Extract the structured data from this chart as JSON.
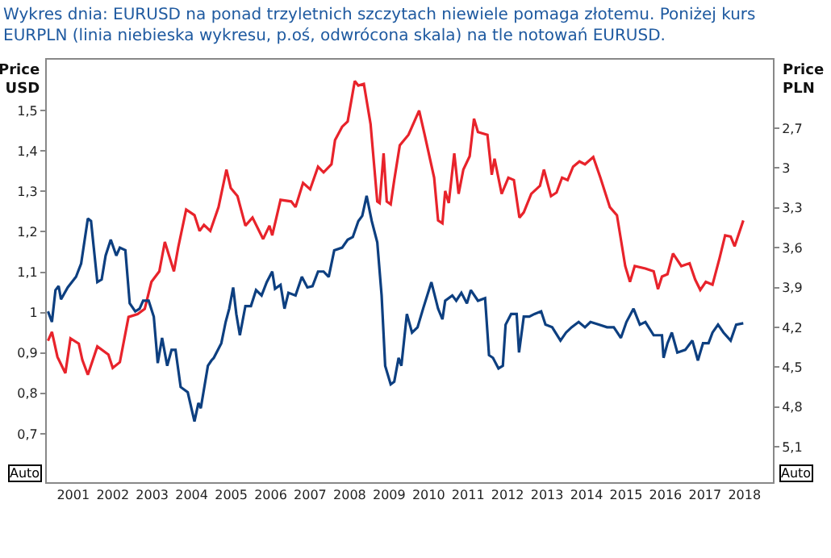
{
  "chart_data": {
    "type": "line",
    "title": "Wykres dnia: EURUSD na ponad trzyletnich szczytach niewiele pomaga złotemu. Poniżej kurs\nEURPLN (linia niebieska wykresu, p.oś, odwrócona skala) na tle notowań EURUSD.",
    "ylabel": "Price\nUSD",
    "y2label": "Price\nPLN",
    "annotations": [
      "Auto",
      "Auto"
    ],
    "xlim": [
      2000.33,
      2018.72
    ],
    "xticks": [
      2001,
      2002,
      2003,
      2004,
      2005,
      2006,
      2007,
      2008,
      2009,
      2010,
      2011,
      2012,
      2013,
      2014,
      2015,
      2016,
      2017,
      2018
    ],
    "ylim": [
      0.58,
      1.626
    ],
    "yticks": [
      {
        "value": 0.7,
        "label": "0,7"
      },
      {
        "value": 0.8,
        "label": "0,8"
      },
      {
        "value": 0.9,
        "label": "0,9"
      },
      1,
      {
        "value": 1.1,
        "label": "1,1"
      },
      {
        "value": 1.2,
        "label": "1,2"
      },
      {
        "value": 1.3,
        "label": "1,3"
      },
      {
        "value": 1.4,
        "label": "1,4"
      },
      {
        "value": 1.5,
        "label": "1,5"
      }
    ],
    "y2lim": [
      5.367,
      2.184
    ],
    "y2ticks": [
      {
        "value": 2.7,
        "label": "2,7"
      },
      3,
      {
        "value": 3.3,
        "label": "3,3"
      },
      {
        "value": 3.6,
        "label": "3,6"
      },
      {
        "value": 3.9,
        "label": "3,9"
      },
      {
        "value": 4.2,
        "label": "4,2"
      },
      {
        "value": 4.5,
        "label": "4,5"
      },
      {
        "value": 4.8,
        "label": "4,8"
      },
      {
        "value": 5.1,
        "label": "5,1"
      }
    ],
    "marker": "none",
    "line_style": "solid",
    "series": [
      {
        "color": "#e8232b",
        "x": [
          2000.36,
          2000.46,
          2000.6,
          2000.8,
          2000.93,
          2001.14,
          2001.23,
          2001.37,
          2001.61,
          2001.89,
          2002.0,
          2002.18,
          2002.4,
          2002.63,
          2002.81,
          2002.98,
          2003.18,
          2003.32,
          2003.55,
          2003.66,
          2003.86,
          2004.07,
          2004.2,
          2004.31,
          2004.47,
          2004.68,
          2004.88,
          2004.99,
          2005.16,
          2005.36,
          2005.54,
          2005.81,
          2005.97,
          2006.04,
          2006.25,
          2006.52,
          2006.63,
          2006.82,
          2007.0,
          2007.2,
          2007.34,
          2007.54,
          2007.63,
          2007.81,
          2007.95,
          2008.13,
          2008.22,
          2008.36,
          2008.53,
          2008.7,
          2008.76,
          2008.86,
          2008.94,
          2009.04,
          2009.13,
          2009.27,
          2009.49,
          2009.76,
          2009.9,
          2010.14,
          2010.24,
          2010.35,
          2010.42,
          2010.51,
          2010.65,
          2010.76,
          2010.88,
          2011.04,
          2011.15,
          2011.25,
          2011.49,
          2011.6,
          2011.67,
          2011.85,
          2012.02,
          2012.16,
          2012.3,
          2012.41,
          2012.6,
          2012.82,
          2012.92,
          2013.1,
          2013.24,
          2013.38,
          2013.52,
          2013.66,
          2013.82,
          2013.96,
          2014.17,
          2014.35,
          2014.59,
          2014.77,
          2014.98,
          2015.1,
          2015.22,
          2015.49,
          2015.7,
          2015.81,
          2015.91,
          2016.05,
          2016.19,
          2016.4,
          2016.61,
          2016.75,
          2016.88,
          2017.02,
          2017.19,
          2017.37,
          2017.51,
          2017.65,
          2017.75,
          2017.97
        ],
        "values": [
          0.93,
          0.952,
          0.89,
          0.85,
          0.936,
          0.923,
          0.883,
          0.846,
          0.916,
          0.896,
          0.863,
          0.877,
          0.989,
          0.996,
          1.009,
          1.076,
          1.102,
          1.175,
          1.102,
          1.162,
          1.255,
          1.241,
          1.202,
          1.217,
          1.202,
          1.261,
          1.354,
          1.308,
          1.288,
          1.215,
          1.235,
          1.182,
          1.215,
          1.191,
          1.279,
          1.275,
          1.261,
          1.321,
          1.305,
          1.361,
          1.347,
          1.367,
          1.427,
          1.46,
          1.473,
          1.573,
          1.562,
          1.566,
          1.467,
          1.275,
          1.271,
          1.394,
          1.275,
          1.268,
          1.328,
          1.414,
          1.44,
          1.5,
          1.44,
          1.334,
          1.228,
          1.221,
          1.301,
          1.271,
          1.394,
          1.294,
          1.354,
          1.387,
          1.48,
          1.447,
          1.44,
          1.341,
          1.381,
          1.294,
          1.334,
          1.328,
          1.235,
          1.248,
          1.294,
          1.314,
          1.354,
          1.288,
          1.297,
          1.334,
          1.328,
          1.361,
          1.374,
          1.367,
          1.385,
          1.334,
          1.261,
          1.241,
          1.115,
          1.076,
          1.115,
          1.109,
          1.102,
          1.058,
          1.089,
          1.095,
          1.146,
          1.115,
          1.122,
          1.082,
          1.056,
          1.076,
          1.069,
          1.135,
          1.191,
          1.188,
          1.164,
          1.228
        ]
      },
      {
        "color": "#0d3f80",
        "axis": "y2",
        "x": [
          2000.36,
          2000.46,
          2000.55,
          2000.63,
          2000.69,
          2000.86,
          2001.07,
          2001.2,
          2001.37,
          2001.45,
          2001.61,
          2001.72,
          2001.82,
          2001.95,
          2002.09,
          2002.18,
          2002.32,
          2002.43,
          2002.57,
          2002.68,
          2002.77,
          2002.91,
          2003.04,
          2003.14,
          2003.25,
          2003.38,
          2003.49,
          2003.59,
          2003.72,
          2003.9,
          2004.07,
          2004.17,
          2004.23,
          2004.41,
          2004.5,
          2004.56,
          2004.75,
          2004.86,
          2004.95,
          2005.05,
          2005.13,
          2005.22,
          2005.36,
          2005.5,
          2005.63,
          2005.77,
          2005.9,
          2006.04,
          2006.11,
          2006.25,
          2006.35,
          2006.45,
          2006.63,
          2006.79,
          2006.93,
          2007.06,
          2007.2,
          2007.34,
          2007.47,
          2007.61,
          2007.81,
          2007.95,
          2008.08,
          2008.22,
          2008.32,
          2008.43,
          2008.56,
          2008.7,
          2008.81,
          2008.9,
          2009.04,
          2009.13,
          2009.24,
          2009.31,
          2009.45,
          2009.58,
          2009.72,
          2009.86,
          2010.07,
          2010.24,
          2010.35,
          2010.42,
          2010.6,
          2010.7,
          2010.83,
          2010.97,
          2011.07,
          2011.25,
          2011.43,
          2011.53,
          2011.63,
          2011.77,
          2011.88,
          2011.95,
          2012.09,
          2012.23,
          2012.29,
          2012.41,
          2012.55,
          2012.68,
          2012.85,
          2012.96,
          2013.13,
          2013.34,
          2013.48,
          2013.62,
          2013.8,
          2013.96,
          2014.1,
          2014.31,
          2014.52,
          2014.69,
          2014.87,
          2015.01,
          2015.19,
          2015.35,
          2015.49,
          2015.7,
          2015.91,
          2015.95,
          2016.05,
          2016.16,
          2016.3,
          2016.5,
          2016.68,
          2016.82,
          2016.95,
          2017.09,
          2017.19,
          2017.33,
          2017.47,
          2017.65,
          2017.79,
          2017.97
        ],
        "values": [
          4.08,
          4.16,
          3.92,
          3.89,
          3.99,
          3.9,
          3.82,
          3.72,
          3.38,
          3.4,
          3.86,
          3.84,
          3.66,
          3.54,
          3.66,
          3.6,
          3.62,
          4.02,
          4.08,
          4.06,
          4.0,
          4.0,
          4.12,
          4.47,
          4.28,
          4.49,
          4.37,
          4.37,
          4.65,
          4.69,
          4.91,
          4.77,
          4.81,
          4.49,
          4.45,
          4.43,
          4.32,
          4.16,
          4.06,
          3.9,
          4.1,
          4.26,
          4.04,
          4.04,
          3.92,
          3.96,
          3.86,
          3.78,
          3.91,
          3.88,
          4.06,
          3.94,
          3.96,
          3.82,
          3.9,
          3.89,
          3.78,
          3.78,
          3.82,
          3.62,
          3.6,
          3.54,
          3.52,
          3.4,
          3.36,
          3.21,
          3.4,
          3.56,
          3.96,
          4.49,
          4.63,
          4.61,
          4.43,
          4.49,
          4.1,
          4.24,
          4.2,
          4.06,
          3.86,
          4.06,
          4.14,
          4.0,
          3.96,
          4.0,
          3.94,
          4.02,
          3.92,
          4.0,
          3.98,
          4.41,
          4.43,
          4.51,
          4.49,
          4.18,
          4.1,
          4.1,
          4.39,
          4.12,
          4.12,
          4.1,
          4.08,
          4.18,
          4.2,
          4.3,
          4.24,
          4.2,
          4.16,
          4.2,
          4.16,
          4.18,
          4.2,
          4.2,
          4.28,
          4.16,
          4.06,
          4.18,
          4.16,
          4.26,
          4.26,
          4.43,
          4.32,
          4.24,
          4.39,
          4.37,
          4.3,
          4.45,
          4.32,
          4.32,
          4.24,
          4.18,
          4.24,
          4.3,
          4.18,
          4.17
        ]
      }
    ]
  }
}
